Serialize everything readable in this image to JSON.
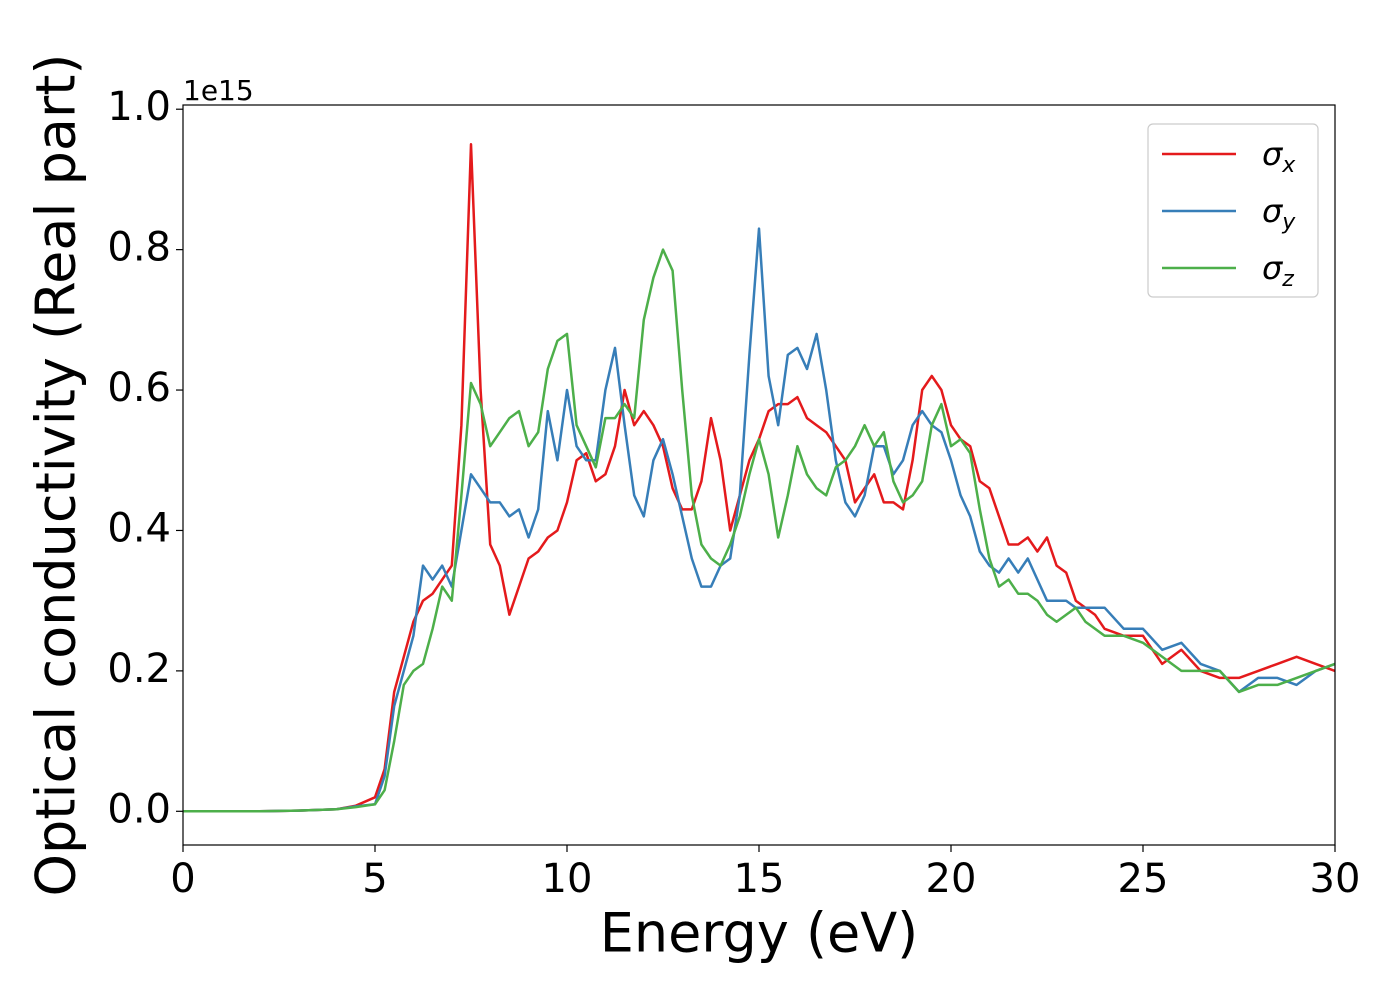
{
  "chart_data": {
    "type": "line",
    "xlabel": "Energy (eV)",
    "ylabel": "Optical conductivity (Real part)",
    "y_offset_label": "1e15",
    "xlim": [
      0,
      30
    ],
    "ylim": [
      -0.048,
      1.006
    ],
    "xticks": [
      0,
      5,
      10,
      15,
      20,
      25,
      30
    ],
    "yticks": [
      {
        "value": 0,
        "label": "0.0"
      },
      0.2,
      0.4,
      0.6,
      0.8,
      {
        "value": 1,
        "label": "1.0"
      }
    ],
    "legend": "upper right",
    "x": [
      0,
      1,
      2,
      3,
      4,
      4.5,
      5,
      5.25,
      5.5,
      5.75,
      6,
      6.25,
      6.5,
      6.75,
      7,
      7.25,
      7.5,
      7.75,
      8,
      8.25,
      8.5,
      8.75,
      9,
      9.25,
      9.5,
      9.75,
      10,
      10.25,
      10.5,
      10.75,
      11,
      11.25,
      11.5,
      11.75,
      12,
      12.25,
      12.5,
      12.75,
      13,
      13.25,
      13.5,
      13.75,
      14,
      14.25,
      14.5,
      14.75,
      15,
      15.25,
      15.5,
      15.75,
      16,
      16.25,
      16.5,
      16.75,
      17,
      17.25,
      17.5,
      17.75,
      18,
      18.25,
      18.5,
      18.75,
      19,
      19.25,
      19.5,
      19.75,
      20,
      20.25,
      20.5,
      20.75,
      21,
      21.25,
      21.5,
      21.75,
      22,
      22.25,
      22.5,
      22.75,
      23,
      23.25,
      23.5,
      23.75,
      24,
      24.5,
      25,
      25.5,
      26,
      26.5,
      27,
      27.5,
      28,
      28.5,
      29,
      29.5,
      30
    ],
    "series": [
      {
        "name": "σx",
        "color": "#e41a1c",
        "values": [
          0,
          0,
          0,
          0.001,
          0.003,
          0.008,
          0.02,
          0.06,
          0.17,
          0.22,
          0.27,
          0.3,
          0.31,
          0.33,
          0.35,
          0.55,
          0.95,
          0.6,
          0.38,
          0.35,
          0.28,
          0.32,
          0.36,
          0.37,
          0.39,
          0.4,
          0.44,
          0.5,
          0.51,
          0.47,
          0.48,
          0.52,
          0.6,
          0.55,
          0.57,
          0.55,
          0.52,
          0.46,
          0.43,
          0.43,
          0.47,
          0.56,
          0.5,
          0.4,
          0.45,
          0.5,
          0.53,
          0.57,
          0.58,
          0.58,
          0.59,
          0.56,
          0.55,
          0.54,
          0.52,
          0.5,
          0.44,
          0.46,
          0.48,
          0.44,
          0.44,
          0.43,
          0.5,
          0.6,
          0.62,
          0.6,
          0.55,
          0.53,
          0.52,
          0.47,
          0.46,
          0.42,
          0.38,
          0.38,
          0.39,
          0.37,
          0.39,
          0.35,
          0.34,
          0.3,
          0.29,
          0.28,
          0.26,
          0.25,
          0.25,
          0.21,
          0.23,
          0.2,
          0.19,
          0.19,
          0.2,
          0.21,
          0.22,
          0.21,
          0.2
        ]
      },
      {
        "name": "σy",
        "color": "#377eb8",
        "values": [
          0,
          0,
          0,
          0.001,
          0.003,
          0.007,
          0.01,
          0.05,
          0.15,
          0.2,
          0.25,
          0.35,
          0.33,
          0.35,
          0.32,
          0.4,
          0.48,
          0.46,
          0.44,
          0.44,
          0.42,
          0.43,
          0.39,
          0.43,
          0.57,
          0.5,
          0.6,
          0.52,
          0.5,
          0.5,
          0.6,
          0.66,
          0.55,
          0.45,
          0.42,
          0.5,
          0.53,
          0.48,
          0.42,
          0.36,
          0.32,
          0.32,
          0.35,
          0.36,
          0.45,
          0.65,
          0.83,
          0.62,
          0.55,
          0.65,
          0.66,
          0.63,
          0.68,
          0.6,
          0.5,
          0.44,
          0.42,
          0.45,
          0.52,
          0.52,
          0.48,
          0.5,
          0.55,
          0.57,
          0.55,
          0.54,
          0.5,
          0.45,
          0.42,
          0.37,
          0.35,
          0.34,
          0.36,
          0.34,
          0.36,
          0.33,
          0.3,
          0.3,
          0.3,
          0.29,
          0.29,
          0.29,
          0.29,
          0.26,
          0.26,
          0.23,
          0.24,
          0.21,
          0.2,
          0.17,
          0.19,
          0.19,
          0.18,
          0.2,
          0.21
        ]
      },
      {
        "name": "σz",
        "color": "#4daf4a",
        "values": [
          0,
          0,
          0,
          0.001,
          0.003,
          0.006,
          0.01,
          0.03,
          0.1,
          0.18,
          0.2,
          0.21,
          0.26,
          0.32,
          0.3,
          0.45,
          0.61,
          0.58,
          0.52,
          0.54,
          0.56,
          0.57,
          0.52,
          0.54,
          0.63,
          0.67,
          0.68,
          0.55,
          0.52,
          0.49,
          0.56,
          0.56,
          0.58,
          0.56,
          0.7,
          0.76,
          0.8,
          0.77,
          0.6,
          0.45,
          0.38,
          0.36,
          0.35,
          0.38,
          0.42,
          0.48,
          0.53,
          0.48,
          0.39,
          0.45,
          0.52,
          0.48,
          0.46,
          0.45,
          0.49,
          0.5,
          0.52,
          0.55,
          0.52,
          0.54,
          0.47,
          0.44,
          0.45,
          0.47,
          0.55,
          0.58,
          0.52,
          0.53,
          0.51,
          0.43,
          0.36,
          0.32,
          0.33,
          0.31,
          0.31,
          0.3,
          0.28,
          0.27,
          0.28,
          0.29,
          0.27,
          0.26,
          0.25,
          0.25,
          0.24,
          0.22,
          0.2,
          0.2,
          0.2,
          0.17,
          0.18,
          0.18,
          0.19,
          0.2,
          0.21
        ]
      }
    ]
  }
}
